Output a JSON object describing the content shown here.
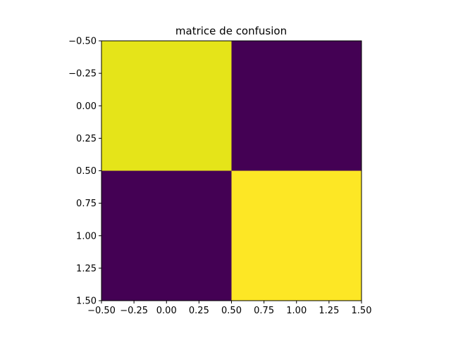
{
  "chart_data": {
    "type": "heatmap",
    "title": "matrice de confusion",
    "xlabel": "",
    "ylabel": "",
    "x": [
      0,
      1
    ],
    "y": [
      0,
      1
    ],
    "xlim": [
      -0.5,
      1.5
    ],
    "ylim": [
      1.5,
      -0.5
    ],
    "x_ticks": [
      "−0.50",
      "−0.25",
      "0.00",
      "0.25",
      "0.50",
      "0.75",
      "1.00",
      "1.25",
      "1.50"
    ],
    "y_ticks": [
      "−0.50",
      "−0.25",
      "0.00",
      "0.25",
      "0.50",
      "0.75",
      "1.00",
      "1.25",
      "1.50"
    ],
    "colormap": "viridis",
    "cells": [
      {
        "row": 0,
        "col": 0,
        "color": "#e5e419"
      },
      {
        "row": 0,
        "col": 1,
        "color": "#440154"
      },
      {
        "row": 1,
        "col": 0,
        "color": "#440154"
      },
      {
        "row": 1,
        "col": 1,
        "color": "#fde725"
      }
    ],
    "grid": false,
    "legend": "none"
  }
}
